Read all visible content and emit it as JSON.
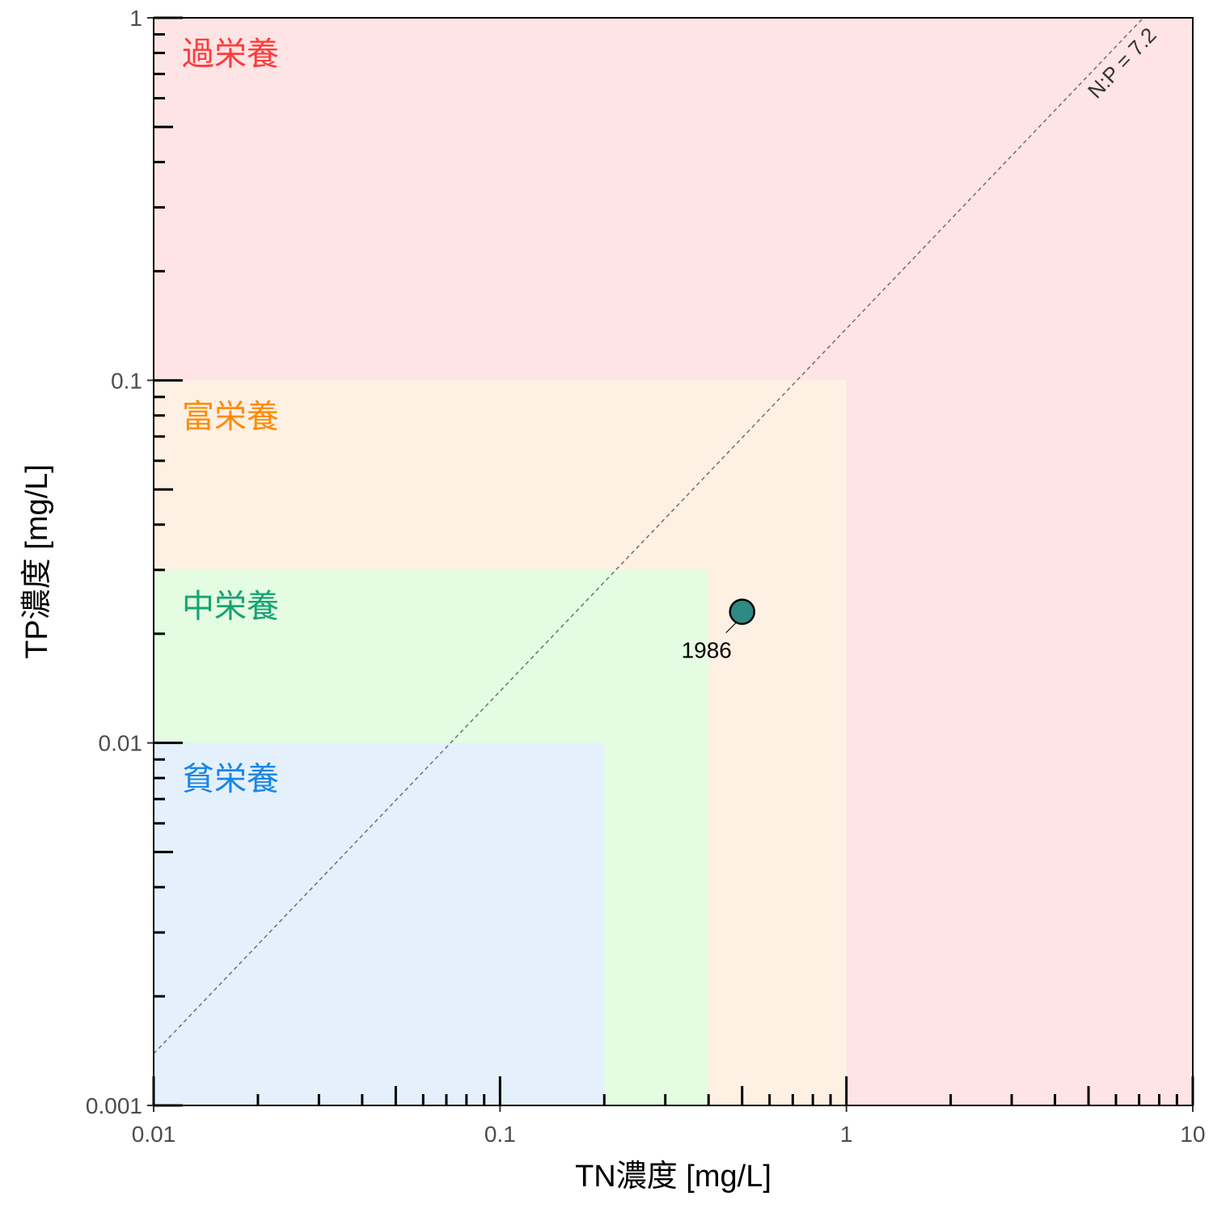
{
  "chart_data": {
    "type": "scatter",
    "xlabel": "TN濃度 [mg/L]",
    "ylabel": "TP濃度 [mg/L]",
    "xscale": "log",
    "yscale": "log",
    "xlim": [
      0.01,
      10
    ],
    "ylim": [
      0.001,
      1
    ],
    "x_major_ticks": [
      0.01,
      0.1,
      1,
      10
    ],
    "x_tick_labels": [
      "0.01",
      "0.1",
      "1",
      "10"
    ],
    "y_major_ticks": [
      0.001,
      0.01,
      0.1,
      1
    ],
    "y_tick_labels": [
      "0.001",
      "0.01",
      "0.1",
      "1"
    ],
    "grid": false,
    "zones": [
      {
        "label": "過栄養",
        "color": "#ff3b3b",
        "fill": "#ffe4e6",
        "tn_max": 10,
        "tp_max": 1
      },
      {
        "label": "富栄養",
        "color": "#ff8c00",
        "fill": "#fff0e4",
        "tn_max": 1,
        "tp_max": 0.1
      },
      {
        "label": "中栄養",
        "color": "#16a374",
        "fill": "#e4fce2",
        "tn_max": 0.4,
        "tp_max": 0.03
      },
      {
        "label": "貧栄養",
        "color": "#1a86e8",
        "fill": "#e4f1fc",
        "tn_max": 0.2,
        "tp_max": 0.01
      }
    ],
    "ratio_line": {
      "label": "N:P = 7.2",
      "ratio": 7.2,
      "color": "#777777"
    },
    "points": [
      {
        "label": "1986",
        "x": 0.5,
        "y": 0.023,
        "color": "#2e8b84"
      }
    ]
  }
}
